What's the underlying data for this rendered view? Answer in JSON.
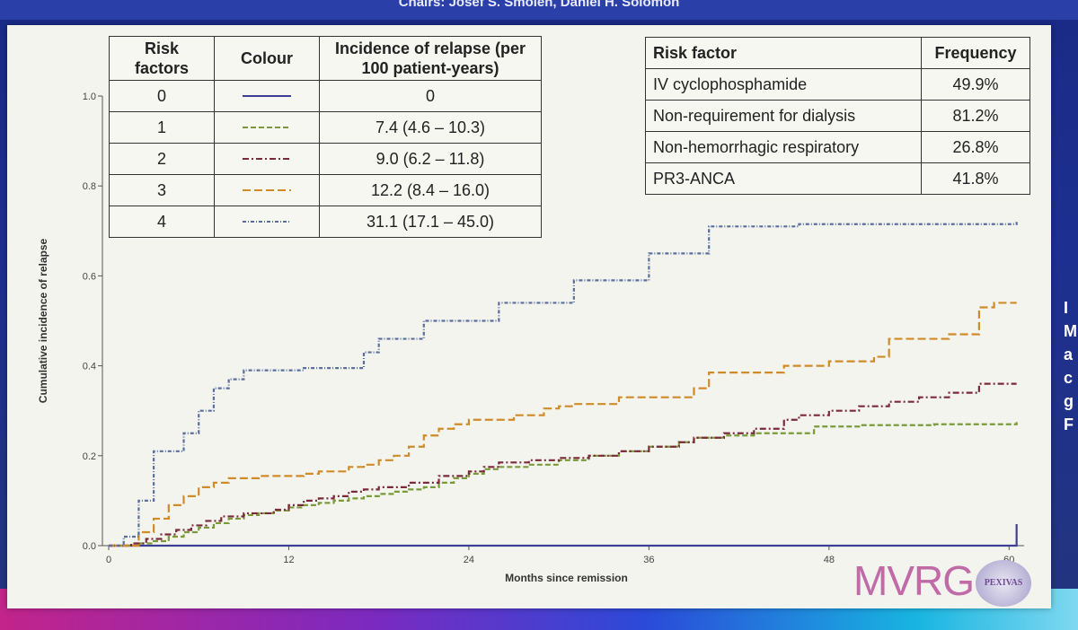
{
  "header": {
    "title": "Chairs: Josef S. Smolen, Daniel H. Solomon"
  },
  "side_text": [
    "I",
    "M",
    "a",
    "c",
    "g",
    "F"
  ],
  "legend_table": {
    "headers": [
      "Risk factors",
      "Colour",
      "Incidence of relapse (per 100 patient-years)"
    ],
    "rows": [
      {
        "risk": "0",
        "color": "#3d3f96",
        "dash": "",
        "incidence": "0"
      },
      {
        "risk": "1",
        "color": "#7a9a3a",
        "dash": "6 3",
        "incidence": "7.4 (4.6 – 10.3)"
      },
      {
        "risk": "2",
        "color": "#7a2a38",
        "dash": "7 3 2 3",
        "incidence": "9.0 (6.2 – 11.8)"
      },
      {
        "risk": "3",
        "color": "#d08a28",
        "dash": "9 4",
        "incidence": "12.2 (8.4 – 16.0)"
      },
      {
        "risk": "4",
        "color": "#5a6e9e",
        "dash": "4 2 1 2",
        "incidence": "31.1 (17.1 – 45.0)"
      }
    ]
  },
  "freq_table": {
    "headers": [
      "Risk factor",
      "Frequency"
    ],
    "rows": [
      {
        "factor": "IV cyclophosphamide",
        "frequency": "49.9%"
      },
      {
        "factor": "Non-requirement for dialysis",
        "frequency": "81.2%"
      },
      {
        "factor": "Non-hemorrhagic respiratory",
        "frequency": "26.8%"
      },
      {
        "factor": "PR3-ANCA",
        "frequency": "41.8%"
      }
    ]
  },
  "logos": {
    "mvrg": "MVRG",
    "pexivas": "PEXIVAS"
  },
  "chart_data": {
    "type": "line",
    "step": true,
    "title": "",
    "xlabel": "Months since remission",
    "ylabel": "Cumulative incidence of relapse",
    "xlim": [
      0,
      61
    ],
    "ylim": [
      0,
      1.0
    ],
    "x_ticks": [
      0,
      12,
      24,
      36,
      48,
      60
    ],
    "y_ticks": [
      "0.0",
      "0.2",
      "0.4",
      "0.6",
      "0.8",
      "1.0"
    ],
    "series": [
      {
        "name": "0 risk factors",
        "color": "#3d3f96",
        "dash": "",
        "points": [
          [
            0,
            0
          ],
          [
            60.5,
            0.048
          ]
        ]
      },
      {
        "name": "1 risk factor",
        "color": "#7a9a3a",
        "dash": "6 3",
        "points": [
          [
            0,
            0
          ],
          [
            2,
            0.005
          ],
          [
            3,
            0.01
          ],
          [
            4,
            0.02
          ],
          [
            5,
            0.03
          ],
          [
            6,
            0.04
          ],
          [
            7,
            0.05
          ],
          [
            8,
            0.06
          ],
          [
            9,
            0.068
          ],
          [
            10,
            0.072
          ],
          [
            11,
            0.078
          ],
          [
            12,
            0.085
          ],
          [
            13,
            0.09
          ],
          [
            14,
            0.095
          ],
          [
            15,
            0.1
          ],
          [
            16,
            0.105
          ],
          [
            17,
            0.11
          ],
          [
            18,
            0.115
          ],
          [
            19,
            0.12
          ],
          [
            20,
            0.125
          ],
          [
            21,
            0.13
          ],
          [
            22,
            0.14
          ],
          [
            23,
            0.15
          ],
          [
            24,
            0.16
          ],
          [
            25,
            0.17
          ],
          [
            26,
            0.175
          ],
          [
            28,
            0.18
          ],
          [
            30,
            0.19
          ],
          [
            32,
            0.2
          ],
          [
            34,
            0.21
          ],
          [
            36,
            0.22
          ],
          [
            38,
            0.23
          ],
          [
            39,
            0.24
          ],
          [
            41,
            0.245
          ],
          [
            43,
            0.25
          ],
          [
            47,
            0.265
          ],
          [
            50,
            0.268
          ],
          [
            55,
            0.27
          ],
          [
            60.5,
            0.275
          ]
        ]
      },
      {
        "name": "2 risk factors",
        "color": "#7a2a38",
        "dash": "7 3 2 3",
        "points": [
          [
            0,
            0
          ],
          [
            1.5,
            0.005
          ],
          [
            2.5,
            0.015
          ],
          [
            3.5,
            0.025
          ],
          [
            4.5,
            0.035
          ],
          [
            5.5,
            0.045
          ],
          [
            6.5,
            0.055
          ],
          [
            7.5,
            0.065
          ],
          [
            9,
            0.072
          ],
          [
            11,
            0.08
          ],
          [
            12,
            0.09
          ],
          [
            13,
            0.1
          ],
          [
            14,
            0.105
          ],
          [
            15,
            0.11
          ],
          [
            16,
            0.12
          ],
          [
            17,
            0.125
          ],
          [
            18,
            0.13
          ],
          [
            20,
            0.14
          ],
          [
            22,
            0.155
          ],
          [
            24,
            0.165
          ],
          [
            25,
            0.175
          ],
          [
            26,
            0.185
          ],
          [
            28,
            0.19
          ],
          [
            30,
            0.195
          ],
          [
            32,
            0.2
          ],
          [
            34,
            0.21
          ],
          [
            36,
            0.22
          ],
          [
            38,
            0.23
          ],
          [
            39,
            0.24
          ],
          [
            41,
            0.25
          ],
          [
            43,
            0.26
          ],
          [
            45,
            0.28
          ],
          [
            46,
            0.29
          ],
          [
            48,
            0.3
          ],
          [
            50,
            0.31
          ],
          [
            52,
            0.32
          ],
          [
            54,
            0.33
          ],
          [
            56,
            0.34
          ],
          [
            58,
            0.36
          ],
          [
            60.5,
            0.36
          ]
        ]
      },
      {
        "name": "3 risk factors",
        "color": "#d08a28",
        "dash": "9 4",
        "points": [
          [
            0,
            0
          ],
          [
            2,
            0.03
          ],
          [
            3,
            0.06
          ],
          [
            4,
            0.09
          ],
          [
            5,
            0.11
          ],
          [
            6,
            0.13
          ],
          [
            7,
            0.14
          ],
          [
            8,
            0.15
          ],
          [
            10,
            0.155
          ],
          [
            13,
            0.16
          ],
          [
            14,
            0.165
          ],
          [
            16,
            0.175
          ],
          [
            17,
            0.18
          ],
          [
            18,
            0.19
          ],
          [
            19,
            0.2
          ],
          [
            20,
            0.22
          ],
          [
            21,
            0.245
          ],
          [
            22,
            0.26
          ],
          [
            23,
            0.27
          ],
          [
            24,
            0.28
          ],
          [
            27,
            0.29
          ],
          [
            29,
            0.305
          ],
          [
            30,
            0.31
          ],
          [
            31,
            0.315
          ],
          [
            34,
            0.33
          ],
          [
            39,
            0.35
          ],
          [
            40,
            0.385
          ],
          [
            45,
            0.4
          ],
          [
            48,
            0.41
          ],
          [
            51,
            0.42
          ],
          [
            52,
            0.46
          ],
          [
            56,
            0.47
          ],
          [
            58,
            0.53
          ],
          [
            59,
            0.54
          ],
          [
            60.5,
            0.54
          ]
        ]
      },
      {
        "name": "4 risk factors",
        "color": "#5a6e9e",
        "dash": "4 2 1 2",
        "points": [
          [
            0,
            0
          ],
          [
            1,
            0.02
          ],
          [
            2,
            0.1
          ],
          [
            3,
            0.21
          ],
          [
            5,
            0.25
          ],
          [
            6,
            0.3
          ],
          [
            7,
            0.35
          ],
          [
            8,
            0.37
          ],
          [
            9,
            0.39
          ],
          [
            13,
            0.395
          ],
          [
            17,
            0.43
          ],
          [
            18,
            0.46
          ],
          [
            21,
            0.5
          ],
          [
            26,
            0.54
          ],
          [
            31,
            0.59
          ],
          [
            36,
            0.65
          ],
          [
            40,
            0.71
          ],
          [
            46,
            0.715
          ],
          [
            60.5,
            0.72
          ]
        ]
      }
    ]
  }
}
